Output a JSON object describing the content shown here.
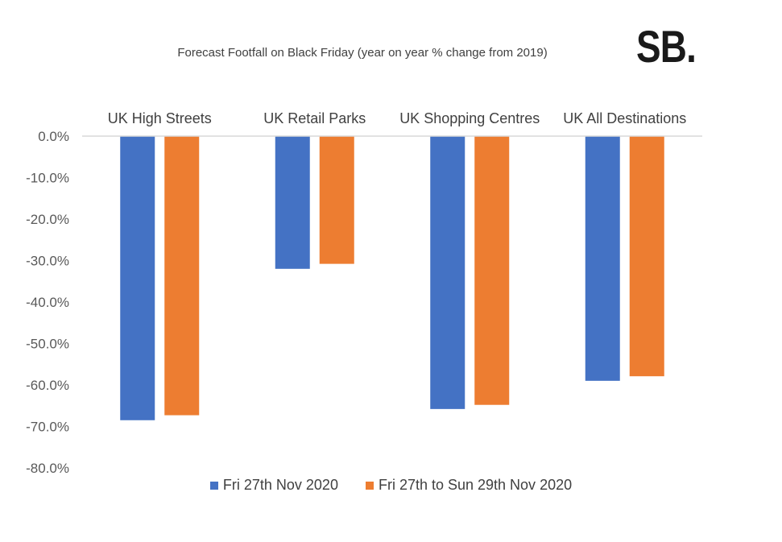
{
  "chart_data": {
    "type": "bar",
    "title": "Forecast Footfall on Black Friday (year on year % change from 2019)",
    "categories": [
      "UK High Streets",
      "UK Retail Parks",
      "UK Shopping Centres",
      "UK All Destinations"
    ],
    "series": [
      {
        "name": "Fri 27th Nov 2020",
        "color": "#4472C4",
        "values": [
          -68.5,
          -32.0,
          -65.8,
          -59.0
        ]
      },
      {
        "name": "Fri 27th to Sun 29th Nov 2020",
        "color": "#ED7D31",
        "values": [
          -67.3,
          -30.8,
          -64.8,
          -57.9
        ]
      }
    ],
    "ylim": [
      -80,
      0
    ],
    "yticks": [
      "0.0%",
      "-10.0%",
      "-20.0%",
      "-30.0%",
      "-40.0%",
      "-50.0%",
      "-60.0%",
      "-70.0%",
      "-80.0%"
    ],
    "xlabel": "",
    "ylabel": "",
    "legend_position": "bottom",
    "category_label_position": "top",
    "grid": false
  },
  "brand": {
    "logo_text": "SB."
  }
}
